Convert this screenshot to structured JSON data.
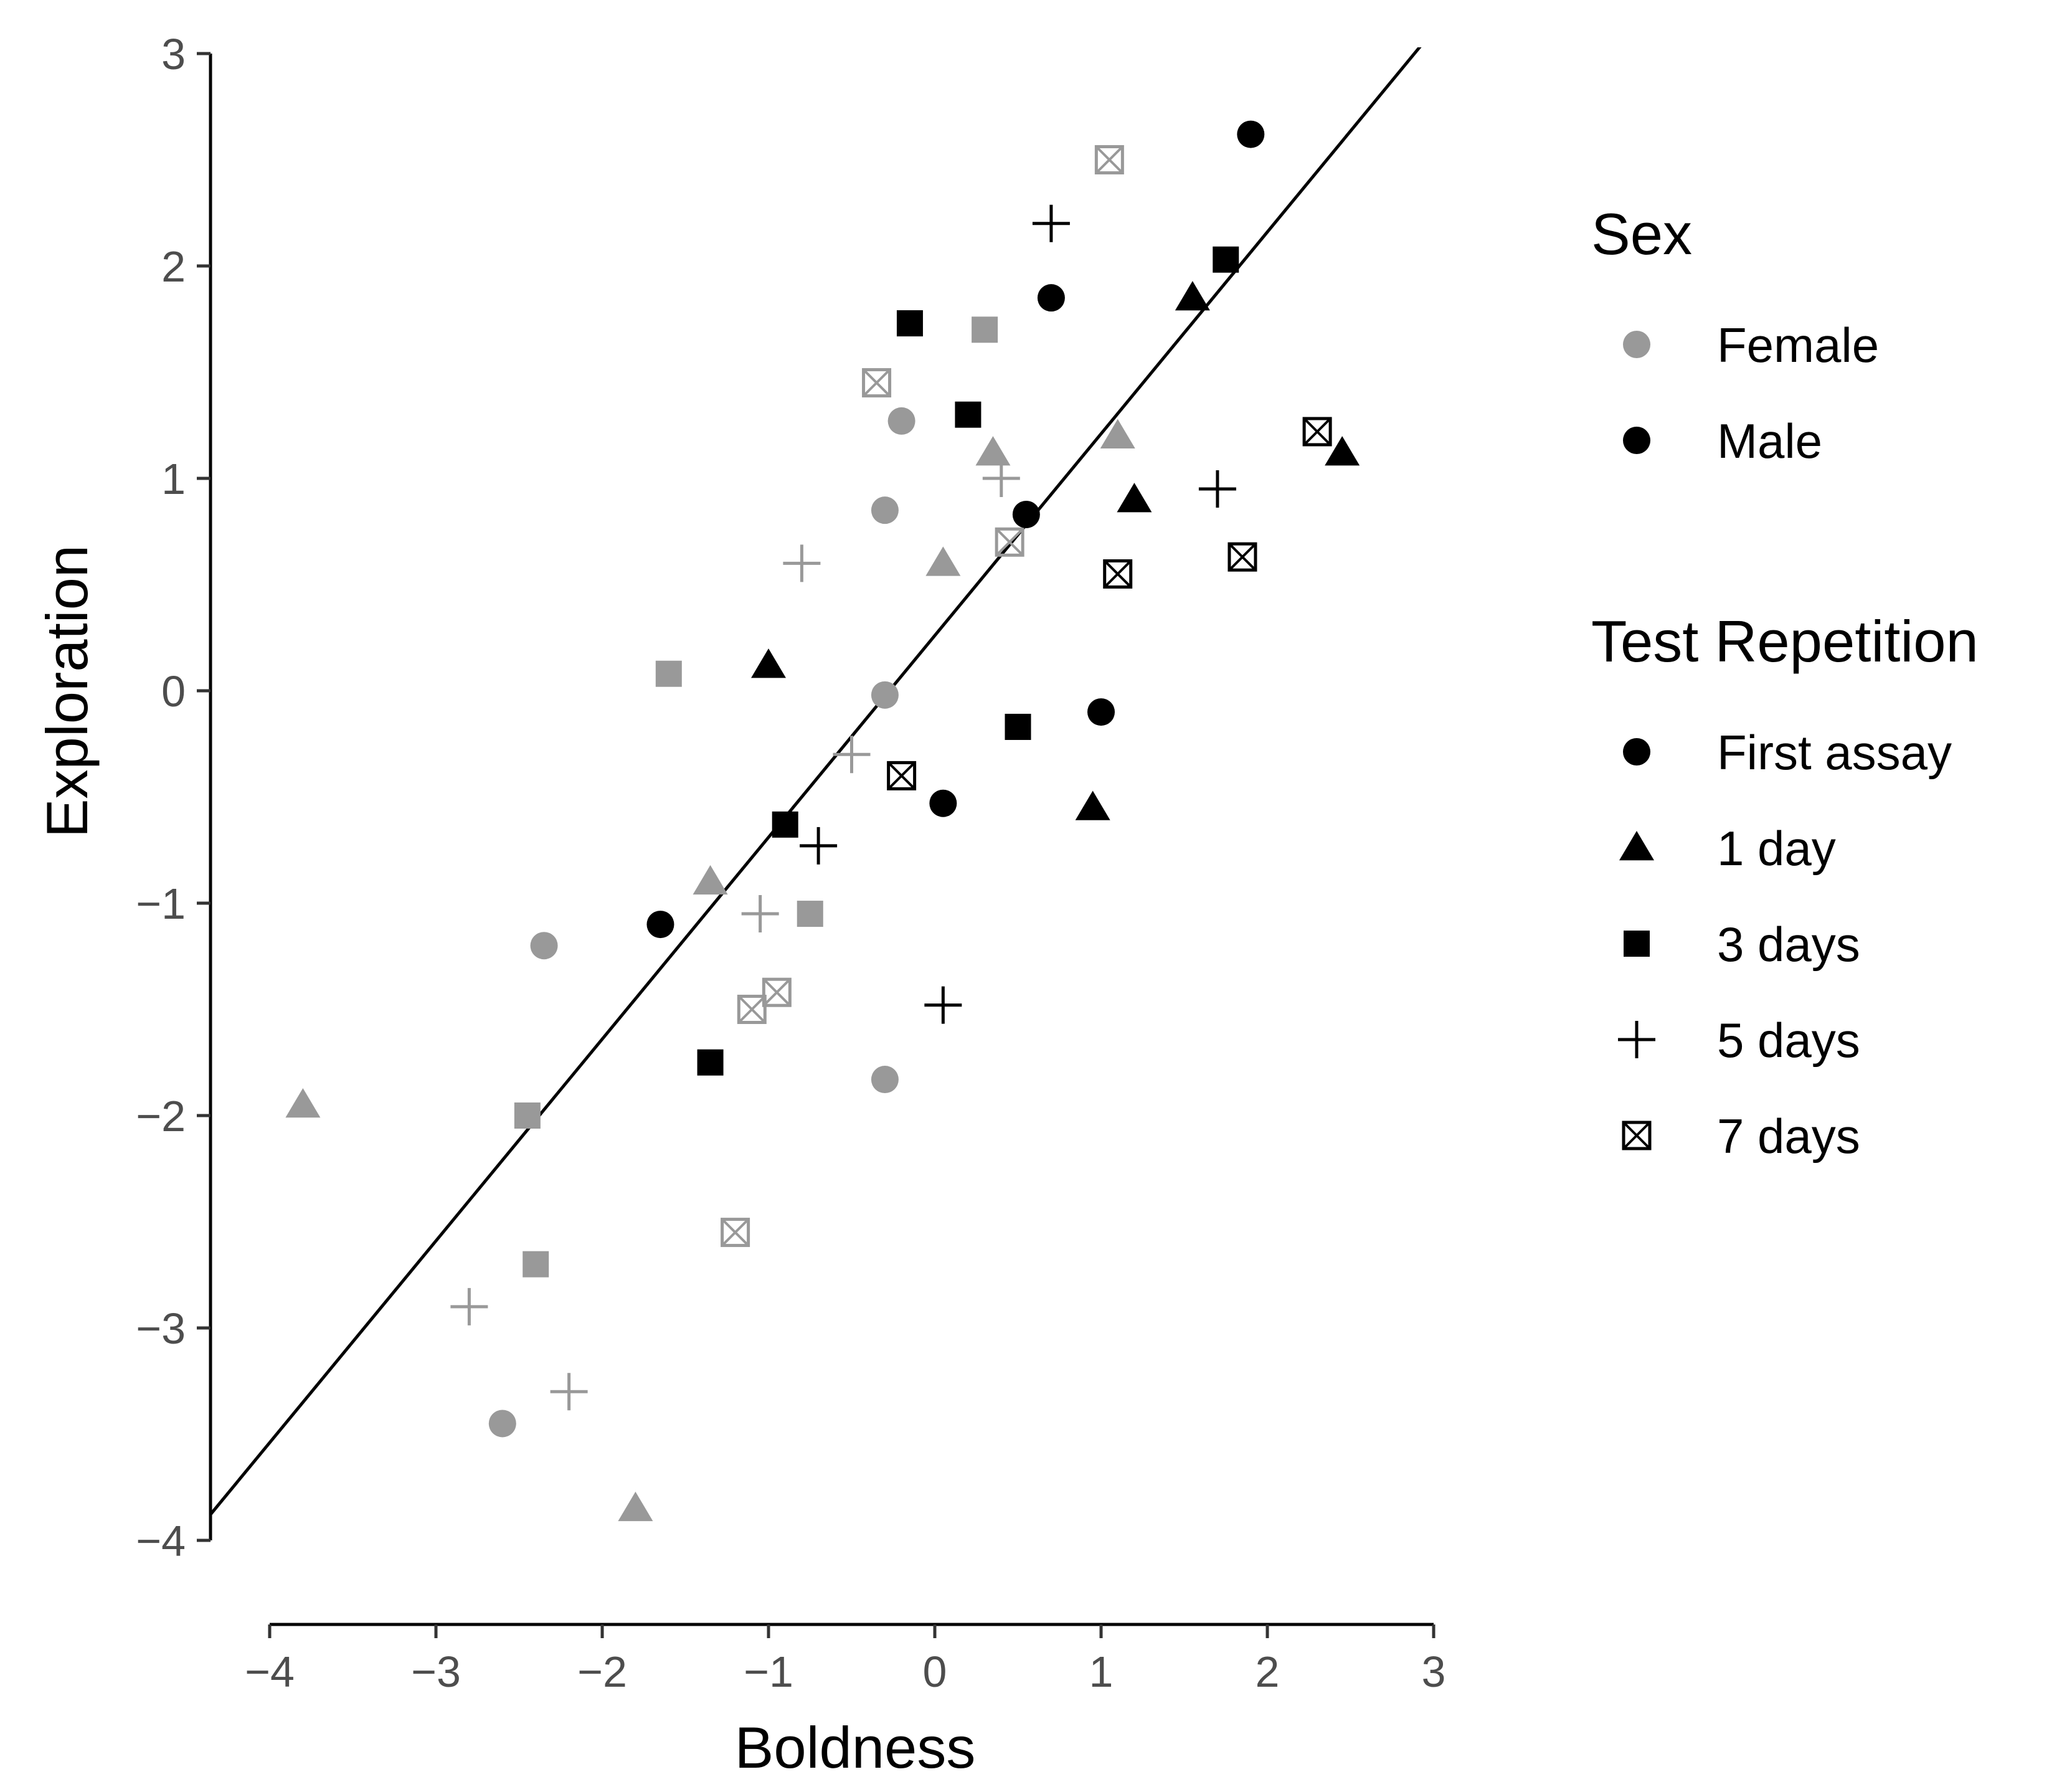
{
  "chart_data": {
    "type": "scatter",
    "title": "",
    "xlabel": "Boldness",
    "ylabel": "Exploration",
    "xlim": [
      -4.3,
      3.0
    ],
    "ylim": [
      -4.0,
      3.0
    ],
    "x_ticks": [
      -4,
      -3,
      -2,
      -1,
      0,
      1,
      2,
      3
    ],
    "y_ticks": [
      -4,
      -3,
      -2,
      -1,
      0,
      1,
      2,
      3
    ],
    "x_tick_labels": [
      "−4",
      "−3",
      "−2",
      "−1",
      "0",
      "1",
      "2",
      "3"
    ],
    "y_tick_labels": [
      "−4",
      "−3",
      "−2",
      "−1",
      "0",
      "1",
      "2",
      "3"
    ],
    "grid": false,
    "colors": {
      "Female": "#999999",
      "Male": "#000000"
    },
    "fit_line": {
      "intercept": 0.26,
      "slope": 0.95
    },
    "legend": {
      "position": "right",
      "sex_title": "Sex",
      "sex": [
        {
          "label": "Female",
          "shape": "circle",
          "color": "#999999"
        },
        {
          "label": "Male",
          "shape": "circle",
          "color": "#000000"
        }
      ],
      "rep_title": "Test Repetition",
      "repetition": [
        {
          "label": "First assay",
          "shape": "circle"
        },
        {
          "label": "1 day",
          "shape": "triangle"
        },
        {
          "label": "3 days",
          "shape": "square"
        },
        {
          "label": "5 days",
          "shape": "plus"
        },
        {
          "label": "7 days",
          "shape": "boxx"
        }
      ]
    },
    "series": [
      {
        "sex": "Female",
        "repetition": "First assay",
        "points": [
          [
            -0.2,
            1.27
          ],
          [
            -0.3,
            0.85
          ],
          [
            -0.3,
            -0.02
          ],
          [
            -2.35,
            -1.2
          ],
          [
            -0.3,
            -1.83
          ],
          [
            -2.6,
            -3.45
          ]
        ]
      },
      {
        "sex": "Female",
        "repetition": "1 day",
        "points": [
          [
            1.1,
            1.2
          ],
          [
            0.35,
            1.12
          ],
          [
            0.05,
            0.6
          ],
          [
            -1.35,
            -0.9
          ],
          [
            -3.8,
            -1.95
          ],
          [
            -1.8,
            -3.85
          ]
        ]
      },
      {
        "sex": "Female",
        "repetition": "3 days",
        "points": [
          [
            0.3,
            1.7
          ],
          [
            -1.6,
            0.08
          ],
          [
            -0.75,
            -1.05
          ],
          [
            -2.45,
            -2.0
          ],
          [
            -2.4,
            -2.7
          ]
        ]
      },
      {
        "sex": "Female",
        "repetition": "5 days",
        "points": [
          [
            0.4,
            1.0
          ],
          [
            -0.8,
            0.6
          ],
          [
            -0.5,
            -0.3
          ],
          [
            -1.05,
            -1.05
          ],
          [
            -2.8,
            -2.9
          ],
          [
            -2.2,
            -3.3
          ]
        ]
      },
      {
        "sex": "Female",
        "repetition": "7 days",
        "points": [
          [
            1.05,
            2.5
          ],
          [
            -0.35,
            1.45
          ],
          [
            0.45,
            0.7
          ],
          [
            -0.95,
            -1.42
          ],
          [
            -1.1,
            -1.5
          ],
          [
            -1.2,
            -2.55
          ]
        ]
      },
      {
        "sex": "Male",
        "repetition": "First assay",
        "points": [
          [
            1.9,
            2.62
          ],
          [
            0.7,
            1.85
          ],
          [
            0.55,
            0.83
          ],
          [
            1.0,
            -0.1
          ],
          [
            0.05,
            -0.53
          ],
          [
            -1.65,
            -1.1
          ]
        ]
      },
      {
        "sex": "Male",
        "repetition": "1 day",
        "points": [
          [
            1.55,
            1.85
          ],
          [
            2.45,
            1.12
          ],
          [
            1.2,
            0.9
          ],
          [
            -1.0,
            0.12
          ],
          [
            0.95,
            -0.55
          ]
        ]
      },
      {
        "sex": "Male",
        "repetition": "3 days",
        "points": [
          [
            1.75,
            2.03
          ],
          [
            -0.15,
            1.73
          ],
          [
            0.2,
            1.3
          ],
          [
            0.5,
            -0.17
          ],
          [
            -0.9,
            -0.63
          ],
          [
            -1.35,
            -1.75
          ]
        ]
      },
      {
        "sex": "Male",
        "repetition": "5 days",
        "points": [
          [
            0.7,
            2.2
          ],
          [
            1.7,
            0.95
          ],
          [
            -0.7,
            -0.73
          ],
          [
            0.05,
            -1.48
          ]
        ]
      },
      {
        "sex": "Male",
        "repetition": "7 days",
        "points": [
          [
            2.3,
            1.22
          ],
          [
            1.85,
            0.63
          ],
          [
            1.1,
            0.55
          ],
          [
            -0.2,
            -0.4
          ]
        ]
      }
    ]
  }
}
